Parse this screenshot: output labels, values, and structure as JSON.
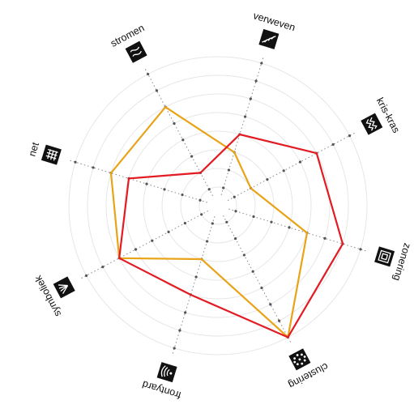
{
  "chart_data": {
    "type": "radar",
    "title": "",
    "categories": [
      "stromen",
      "verweven",
      "kris-kras",
      "zonering",
      "clustering",
      "frontyard",
      "symboliek",
      "net"
    ],
    "icons": [
      "wave-lines-icon",
      "twisted-strand-icon",
      "zigzag-pattern-icon",
      "nested-squares-icon",
      "dot-cluster-icon",
      "sound-waves-icon",
      "radiating-lines-icon",
      "grid-icon"
    ],
    "rings": 8,
    "range": [
      0,
      8
    ],
    "grid": true,
    "legend": "none",
    "series": [
      {
        "color": "#e8a317",
        "values": [
          6,
          3,
          2,
          5,
          8,
          3,
          6,
          6
        ]
      },
      {
        "color": "#e31b23",
        "values": [
          2,
          4,
          6,
          7,
          8,
          5,
          6,
          5
        ]
      }
    ]
  }
}
